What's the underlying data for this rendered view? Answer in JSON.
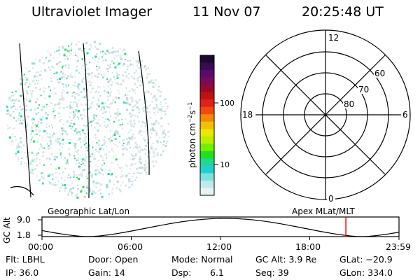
{
  "header": {
    "instrument": "Ultraviolet Imager",
    "date": "11 Nov 07",
    "time": "20:25:48 UT"
  },
  "colorbar": {
    "unit_label": "photon cm",
    "unit_exp1": "−2",
    "unit_mid": "s",
    "unit_exp2": "−1",
    "ticks": [
      "100",
      "10"
    ],
    "colors_top_to_bottom": [
      "#1a0a33",
      "#3a0a55",
      "#5a0a6a",
      "#7a0a55",
      "#990a2a",
      "#c01010",
      "#e0201a",
      "#f04a10",
      "#f28a00",
      "#f2c000",
      "#e8e800",
      "#b8f000",
      "#70f000",
      "#20e020",
      "#20d890",
      "#20d0d0",
      "#80e0e0",
      "#c0eaea",
      "#e8f2f2"
    ]
  },
  "polar_plot": {
    "mlt_labels": {
      "top": "12",
      "left": "18",
      "right": "6",
      "bottom": "0"
    },
    "lat_labels": [
      "60",
      "70",
      "80"
    ]
  },
  "track_panel": {
    "left_title": "Geographic Lat/Lon",
    "right_title": "Apex MLat/MLT",
    "y_axis_label": "GC Alt",
    "y_ticks": [
      "9.0",
      "1.8"
    ],
    "x_ticks": [
      "00:00",
      "06:00",
      "12:00",
      "18:00",
      "23:59"
    ],
    "current_time_marker_hours": 20.43,
    "marker_color": "#ff0000"
  },
  "info": {
    "flt": "Flt: LBHL",
    "ip": "IP: 36.0",
    "door": "Door: Open",
    "gain": "Gain: 14",
    "mode": "Mode: Normal",
    "dsp_label": "Dsp:",
    "dsp_value": "6.1",
    "gc_alt": "GC Alt: 3.9 Re",
    "seq": "Seq: 39",
    "glat": "GLat: −20.9",
    "glon": "GLon: 334.0"
  }
}
